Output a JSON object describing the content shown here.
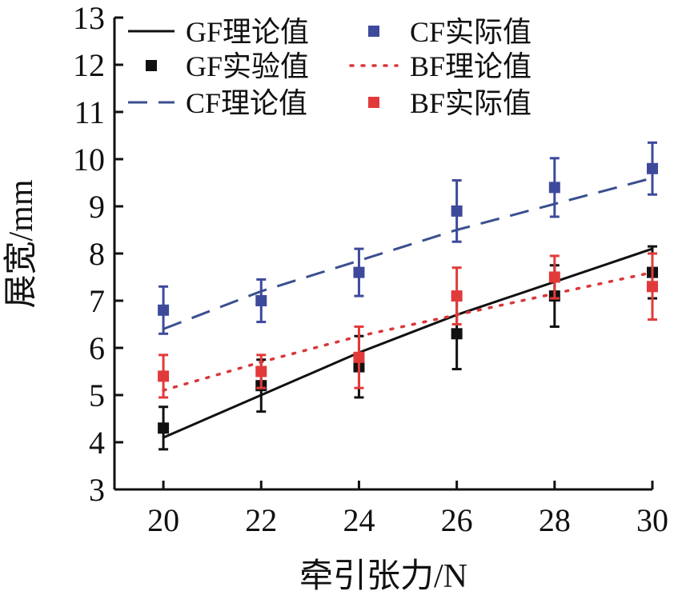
{
  "chart_data": {
    "type": "line",
    "title": "",
    "xlabel": "牵引张力/N",
    "ylabel": "展宽/mm",
    "xlim": [
      19,
      30
    ],
    "ylim": [
      3,
      13
    ],
    "x_ticks": [
      20,
      22,
      24,
      26,
      28,
      30
    ],
    "y_ticks": [
      3,
      4,
      5,
      6,
      7,
      8,
      9,
      10,
      11,
      12,
      13
    ],
    "grid": false,
    "legend_placement": "top-left",
    "series": [
      {
        "name": "GF理论值",
        "kind": "line",
        "style": "solid",
        "color": "#111111",
        "x": [
          20,
          22,
          24,
          26,
          28,
          30
        ],
        "y": [
          4.1,
          5.0,
          5.9,
          6.7,
          7.4,
          8.1
        ]
      },
      {
        "name": "GF实验值",
        "kind": "points",
        "marker": "square",
        "color": "#111111",
        "x": [
          20,
          22,
          24,
          26,
          28,
          30
        ],
        "y": [
          4.3,
          5.2,
          5.6,
          6.3,
          7.1,
          7.6
        ],
        "err": [
          0.45,
          0.55,
          0.65,
          0.75,
          0.65,
          0.55
        ]
      },
      {
        "name": "CF理论值",
        "kind": "line",
        "style": "dashed",
        "color": "#3a4f8f",
        "x": [
          20,
          22,
          24,
          26,
          28,
          30
        ],
        "y": [
          6.4,
          7.2,
          7.85,
          8.5,
          9.05,
          9.6
        ]
      },
      {
        "name": "CF实际值",
        "kind": "points",
        "marker": "square",
        "color": "#3d4a9c",
        "x": [
          20,
          22,
          24,
          26,
          28,
          30
        ],
        "y": [
          6.8,
          7.0,
          7.6,
          8.9,
          9.4,
          9.8
        ],
        "err": [
          0.5,
          0.45,
          0.5,
          0.65,
          0.62,
          0.55
        ]
      },
      {
        "name": "BF理论值",
        "kind": "line",
        "style": "dotted",
        "color": "#d9373a",
        "x": [
          20,
          22,
          24,
          26,
          28,
          30
        ],
        "y": [
          5.1,
          5.7,
          6.25,
          6.7,
          7.15,
          7.6
        ]
      },
      {
        "name": "BF实际值",
        "kind": "points",
        "marker": "square",
        "color": "#e23a3a",
        "x": [
          20,
          22,
          24,
          26,
          28,
          30
        ],
        "y": [
          5.4,
          5.5,
          5.8,
          7.1,
          7.5,
          7.3
        ],
        "err": [
          0.45,
          0.35,
          0.65,
          0.6,
          0.45,
          0.7
        ]
      }
    ]
  }
}
